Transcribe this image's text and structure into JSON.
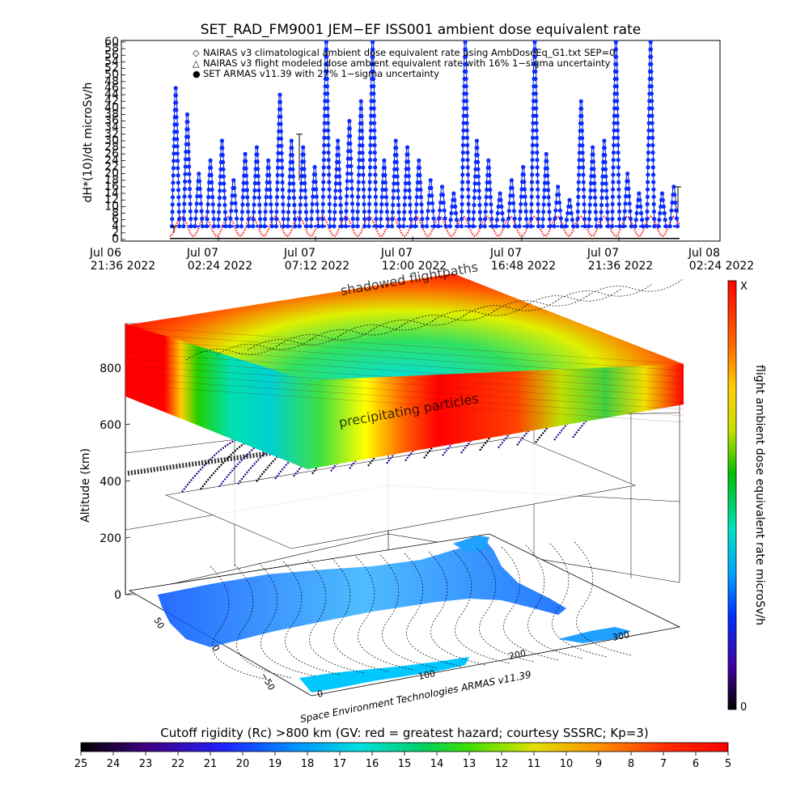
{
  "colors": {
    "series_climatological": "#ff2a2a",
    "series_flight_modeled": "#000000",
    "series_armas": "#0a2cff",
    "series_armas_line": "#0018c8",
    "colorbar_top": "#ff0000",
    "colorbar_bottom": "#000000"
  },
  "chart_data": [
    {
      "type": "line",
      "title": "SET_RAD_FM9001   JEM−EF ISS001 ambient dose equivalent rate",
      "ylabel": "dH*(10)/dt microSv/h",
      "ylim": [
        0,
        60
      ],
      "y_ticks": [
        "0",
        "2",
        "4",
        "6",
        "8",
        "10",
        "12",
        "14",
        "16",
        "18",
        "20",
        "22",
        "24",
        "26",
        "28",
        "30",
        "32",
        "34",
        "36",
        "38",
        "40",
        "42",
        "44",
        "46",
        "48",
        "50",
        "52",
        "54",
        "56",
        "58",
        "60"
      ],
      "x_ticks": [
        {
          "line1": "Jul 06",
          "line2": "21:36 2022"
        },
        {
          "line1": "Jul 07",
          "line2": "02:24 2022"
        },
        {
          "line1": "Jul 07",
          "line2": "07:12 2022"
        },
        {
          "line1": "Jul 07",
          "line2": "12:00 2022"
        },
        {
          "line1": "Jul 07",
          "line2": "16:48 2022"
        },
        {
          "line1": "Jul 07",
          "line2": "21:36 2022"
        },
        {
          "line1": "Jul 08",
          "line2": "02:24 2022"
        }
      ],
      "legend": [
        {
          "symbol": "◇",
          "label": "NAIRAS v3 climatological ambient dose equivalent rate using AmbDoseEq_G1.txt SEP=0"
        },
        {
          "symbol": "△",
          "label": "NAIRAS v3 flight modeled dose ambient equivalent rate with 16% 1−sigma uncertainty"
        },
        {
          "symbol": "●",
          "label": "SET ARMAS v11.39 with 27% 1−sigma uncertainty"
        }
      ],
      "legend_position": "top-center",
      "x_hours_since_start_of_data": "Jul 06 23:50 2022 to Jul 08 00:10 2022",
      "series": [
        {
          "name": "SET ARMAS v11.39 with 27% 1−sigma uncertainty",
          "style": "line+circles",
          "peaks": [
            46,
            38,
            20,
            24,
            30,
            18,
            26,
            28,
            24,
            44,
            30,
            28,
            22,
            60,
            30,
            36,
            42,
            60,
            24,
            30,
            28,
            24,
            18,
            16,
            14,
            60,
            30,
            24,
            14,
            18,
            22,
            60,
            26,
            16,
            12,
            42,
            28,
            30,
            60,
            20,
            14,
            60,
            14,
            16
          ],
          "base": 4
        },
        {
          "name": "NAIRAS v3 climatological ambient dose equivalent rate using AmbDoseEq_G1.txt SEP=0",
          "style": "diamonds",
          "oscillation_min": 1,
          "oscillation_max": 7
        },
        {
          "name": "NAIRAS v3 flight modeled dose ambient equivalent rate with 16% 1−sigma uncertainty",
          "style": "line",
          "value": 0.3
        }
      ]
    },
    {
      "type": "heatmap",
      "subtype": "3d-globe-altitude-panel",
      "ylabel": "Altitude (km)",
      "altitude_ticks": [
        "0",
        "200",
        "400",
        "600",
        "800"
      ],
      "altitude_range": [
        0,
        900
      ],
      "latitude_ticks": [
        "50",
        "0",
        "−50"
      ],
      "longitude_ticks": [
        "0",
        "100",
        "200",
        "300"
      ],
      "layer_labels": [
        "shadowed flightpaths",
        "precipitating particles"
      ],
      "credit": "Space Environment Technologies ARMAS v11.39",
      "colorbar_vertical": {
        "label": "flight ambient dose equivalent rate microSv/h",
        "top_label": "X",
        "bottom_label": "0"
      },
      "colorbar_horizontal": {
        "title": "Cutoff rigidity (Rc) >800 km (GV: red = greatest hazard; courtesy SSSRC; Kp=3)",
        "ticks": [
          "25",
          "24",
          "23",
          "22",
          "21",
          "20",
          "19",
          "18",
          "17",
          "16",
          "15",
          "14",
          "13",
          "12",
          "11",
          "10",
          "9",
          "8",
          "7",
          "6",
          "5"
        ]
      }
    }
  ]
}
